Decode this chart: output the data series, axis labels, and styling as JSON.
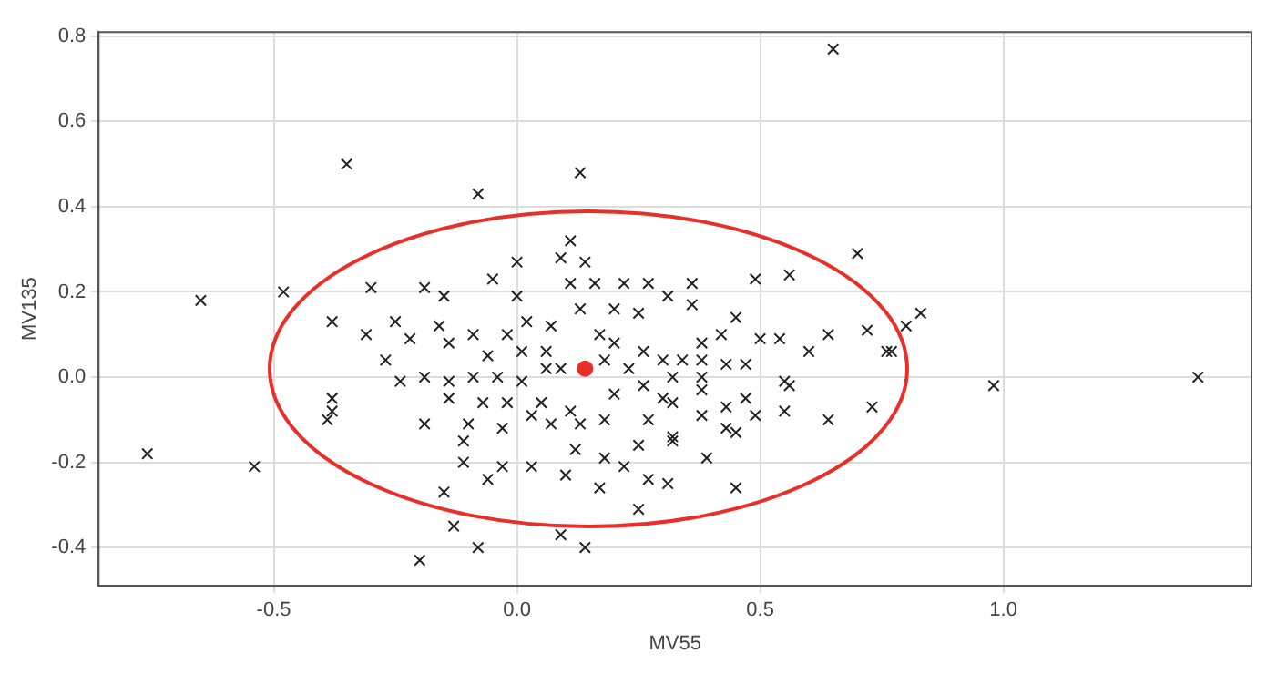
{
  "chart_data": {
    "type": "scatter",
    "xlabel": "MV55",
    "ylabel": "MV135",
    "xlim": [
      -0.86,
      1.51
    ],
    "ylim": [
      -0.49,
      0.81
    ],
    "xticks": [
      {
        "value": -0.5,
        "label": "-0.5"
      },
      {
        "value": 0,
        "label": "0.0"
      },
      {
        "value": 0.5,
        "label": "0.5"
      },
      {
        "value": 1,
        "label": "1.0"
      }
    ],
    "yticks": [
      {
        "value": -0.4,
        "label": "-0.4"
      },
      {
        "value": -0.2,
        "label": "-0.2"
      },
      {
        "value": 0,
        "label": "0.0"
      },
      0.2,
      0.4,
      0.6,
      0.8
    ],
    "grid": true,
    "legend": false,
    "series": [
      {
        "type": "scatter",
        "color": "#222222",
        "marker": "cross",
        "x": [
          -0.76,
          -0.65,
          -0.54,
          -0.48,
          -0.35,
          -0.08,
          0.13,
          0.65,
          0.98,
          1.4,
          0.7,
          0.83,
          0.8,
          0.77,
          0.73,
          0.64,
          0.55,
          0.56,
          0.56,
          0.49,
          0.45,
          0.45,
          0.39,
          -0.2,
          -0.08,
          -0.13,
          -0.15,
          0.09,
          0.14,
          0.25,
          -0.38,
          -0.31,
          -0.3,
          -0.25,
          -0.27,
          -0.22,
          -0.19,
          -0.15,
          -0.16,
          -0.38,
          -0.38,
          -0.39,
          -0.24,
          -0.19,
          -0.19,
          -0.1,
          -0.11,
          -0.11,
          -0.03,
          0.03,
          -0.06,
          0.1,
          0.17,
          0.12,
          0.18,
          0.22,
          0.27,
          0.31,
          -0.09,
          -0.05,
          0.0,
          0.0,
          0.11,
          0.09,
          0.14,
          0.11,
          0.16,
          0.22,
          0.27,
          0.31,
          0.2,
          0.25,
          0.13,
          0.07,
          0.02,
          -0.02,
          -0.14,
          -0.09,
          -0.14,
          -0.04,
          0.01,
          0.06,
          0.09,
          -0.14,
          -0.07,
          -0.02,
          0.05,
          0.11,
          0.07,
          0.13,
          0.18,
          0.2,
          0.18,
          0.23,
          0.26,
          0.3,
          0.26,
          0.3,
          0.25,
          0.27,
          0.32,
          0.2,
          0.17,
          0.06,
          0.01,
          -0.06,
          0.03,
          -0.03,
          0.36,
          0.36,
          0.45,
          0.5,
          0.54,
          0.6,
          0.64,
          0.72,
          0.76,
          0.55,
          0.38,
          0.38,
          0.38,
          0.38,
          0.43,
          0.47,
          0.47,
          0.49,
          0.43,
          0.43,
          0.38,
          0.32,
          0.32,
          0.32,
          0.34,
          0.42
        ],
        "values": [
          -0.18,
          0.18,
          -0.21,
          0.2,
          0.5,
          0.43,
          0.48,
          0.77,
          -0.02,
          0.0,
          0.29,
          0.15,
          0.12,
          0.06,
          -0.07,
          -0.1,
          -0.08,
          -0.02,
          0.24,
          0.23,
          -0.13,
          -0.26,
          -0.19,
          -0.43,
          -0.4,
          -0.35,
          -0.27,
          -0.37,
          -0.4,
          -0.31,
          0.13,
          0.1,
          0.21,
          0.13,
          0.04,
          0.09,
          0.21,
          0.19,
          0.12,
          -0.05,
          -0.08,
          -0.1,
          -0.01,
          0.0,
          -0.11,
          -0.11,
          -0.15,
          -0.2,
          -0.21,
          -0.21,
          -0.24,
          -0.23,
          -0.26,
          -0.17,
          -0.19,
          -0.21,
          -0.24,
          -0.25,
          0.1,
          0.23,
          0.27,
          0.19,
          0.32,
          0.28,
          0.27,
          0.22,
          0.22,
          0.22,
          0.22,
          0.19,
          0.16,
          0.15,
          0.16,
          0.12,
          0.13,
          0.1,
          0.08,
          0.0,
          -0.01,
          0.0,
          -0.01,
          0.02,
          0.02,
          -0.05,
          -0.06,
          -0.06,
          -0.06,
          -0.08,
          -0.11,
          -0.11,
          -0.1,
          -0.04,
          0.04,
          0.02,
          -0.02,
          0.04,
          0.06,
          -0.05,
          -0.16,
          -0.1,
          -0.14,
          0.08,
          0.1,
          0.06,
          0.06,
          0.05,
          -0.09,
          -0.12,
          0.22,
          0.17,
          0.14,
          0.09,
          0.09,
          0.06,
          0.1,
          0.11,
          0.06,
          -0.01,
          0.08,
          0.04,
          0.0,
          -0.03,
          0.03,
          0.03,
          -0.05,
          -0.09,
          -0.07,
          -0.12,
          -0.09,
          -0.15,
          0.0,
          -0.06,
          0.04,
          0.1
        ]
      },
      {
        "type": "scatter",
        "color": "#e8302a",
        "marker": "circle",
        "x": [
          0.14
        ],
        "values": [
          0.02
        ]
      }
    ]
  }
}
